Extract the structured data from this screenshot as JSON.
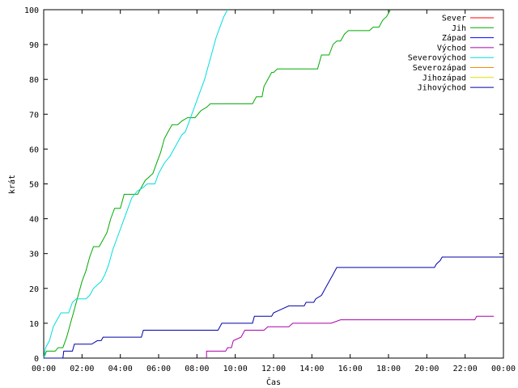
{
  "chart_data": {
    "type": "line",
    "title": "",
    "xlabel": "Čas",
    "ylabel": "krát",
    "xlim": [
      0,
      24
    ],
    "ylim": [
      0,
      100
    ],
    "grid": false,
    "legend_position": "top-right",
    "x_ticks": [
      0,
      2,
      4,
      6,
      8,
      10,
      12,
      14,
      16,
      18,
      20,
      22,
      24
    ],
    "x_tick_labels": [
      "00:00",
      "02:00",
      "04:00",
      "06:00",
      "08:00",
      "10:00",
      "12:00",
      "14:00",
      "16:00",
      "18:00",
      "20:00",
      "22:00",
      "00:00"
    ],
    "y_ticks": [
      0,
      10,
      20,
      30,
      40,
      50,
      60,
      70,
      80,
      90,
      100
    ],
    "y_tick_labels": [
      "0",
      "10",
      "20",
      "30",
      "40",
      "50",
      "60",
      "70",
      "80",
      "90",
      "100"
    ],
    "series": [
      {
        "name": "Sever",
        "color": "#ff0000",
        "points": []
      },
      {
        "name": "Jih",
        "color": "#00aa00",
        "points": [
          [
            0,
            0
          ],
          [
            0.15,
            2
          ],
          [
            0.6,
            2
          ],
          [
            0.75,
            3
          ],
          [
            1.0,
            3
          ],
          [
            1.2,
            6
          ],
          [
            1.4,
            10
          ],
          [
            1.6,
            14
          ],
          [
            1.8,
            18
          ],
          [
            2.0,
            22
          ],
          [
            2.2,
            25
          ],
          [
            2.4,
            29
          ],
          [
            2.6,
            32
          ],
          [
            2.9,
            32
          ],
          [
            3.0,
            33
          ],
          [
            3.3,
            36
          ],
          [
            3.5,
            40
          ],
          [
            3.7,
            43
          ],
          [
            4.0,
            43
          ],
          [
            4.2,
            47
          ],
          [
            4.9,
            47
          ],
          [
            5.1,
            49
          ],
          [
            5.3,
            51
          ],
          [
            5.5,
            52
          ],
          [
            5.7,
            53
          ],
          [
            5.9,
            56
          ],
          [
            6.1,
            59
          ],
          [
            6.3,
            63
          ],
          [
            6.5,
            65
          ],
          [
            6.7,
            67
          ],
          [
            7.0,
            67
          ],
          [
            7.2,
            68
          ],
          [
            7.5,
            69
          ],
          [
            7.9,
            69
          ],
          [
            8.2,
            71
          ],
          [
            8.5,
            72
          ],
          [
            8.7,
            73
          ],
          [
            10.9,
            73
          ],
          [
            11.1,
            75
          ],
          [
            11.4,
            75
          ],
          [
            11.5,
            78
          ],
          [
            11.7,
            80
          ],
          [
            11.9,
            82
          ],
          [
            12.0,
            82
          ],
          [
            12.2,
            83
          ],
          [
            14.3,
            83
          ],
          [
            14.5,
            87
          ],
          [
            14.9,
            87
          ],
          [
            15.1,
            90
          ],
          [
            15.3,
            91
          ],
          [
            15.5,
            91
          ],
          [
            15.7,
            93
          ],
          [
            15.9,
            94
          ],
          [
            17.0,
            94
          ],
          [
            17.2,
            95
          ],
          [
            17.5,
            95
          ],
          [
            17.7,
            97
          ],
          [
            17.9,
            98
          ],
          [
            18.1,
            100
          ]
        ]
      },
      {
        "name": "Západ",
        "color": "#0000ff",
        "points": []
      },
      {
        "name": "Východ",
        "color": "#aa00aa",
        "points": [
          [
            8.5,
            0
          ],
          [
            8.5,
            2
          ],
          [
            9.5,
            2
          ],
          [
            9.6,
            3
          ],
          [
            9.8,
            3
          ],
          [
            9.9,
            5
          ],
          [
            10.3,
            6
          ],
          [
            10.5,
            8
          ],
          [
            11.5,
            8
          ],
          [
            11.7,
            9
          ],
          [
            12.0,
            9
          ],
          [
            12.8,
            9
          ],
          [
            13.0,
            10
          ],
          [
            14.5,
            10
          ],
          [
            15.0,
            10
          ],
          [
            15.5,
            11
          ],
          [
            17.2,
            11
          ],
          [
            20.0,
            11
          ],
          [
            21.0,
            11
          ],
          [
            22.0,
            11
          ],
          [
            22.5,
            11
          ],
          [
            22.6,
            12
          ],
          [
            23.5,
            12
          ]
        ]
      },
      {
        "name": "Severovýchod",
        "color": "#00dddd",
        "points": [
          [
            0,
            0
          ],
          [
            0.1,
            3
          ],
          [
            0.3,
            5
          ],
          [
            0.5,
            9
          ],
          [
            0.7,
            11
          ],
          [
            0.9,
            13
          ],
          [
            1.3,
            13
          ],
          [
            1.5,
            16
          ],
          [
            1.7,
            17
          ],
          [
            2.2,
            17
          ],
          [
            2.4,
            18
          ],
          [
            2.6,
            20
          ],
          [
            2.8,
            21
          ],
          [
            3.0,
            22
          ],
          [
            3.2,
            24
          ],
          [
            3.4,
            27
          ],
          [
            3.6,
            31
          ],
          [
            3.8,
            34
          ],
          [
            4.0,
            37
          ],
          [
            4.2,
            40
          ],
          [
            4.4,
            43
          ],
          [
            4.6,
            46
          ],
          [
            4.9,
            48
          ],
          [
            5.2,
            49
          ],
          [
            5.4,
            50
          ],
          [
            5.8,
            50
          ],
          [
            6.0,
            53
          ],
          [
            6.3,
            56
          ],
          [
            6.6,
            58
          ],
          [
            6.8,
            60
          ],
          [
            7.0,
            62
          ],
          [
            7.2,
            64
          ],
          [
            7.4,
            65
          ],
          [
            7.6,
            68
          ],
          [
            7.8,
            71
          ],
          [
            8.0,
            74
          ],
          [
            8.2,
            77
          ],
          [
            8.4,
            80
          ],
          [
            8.6,
            84
          ],
          [
            8.8,
            88
          ],
          [
            9.0,
            92
          ],
          [
            9.2,
            95
          ],
          [
            9.4,
            98
          ],
          [
            9.6,
            100
          ]
        ]
      },
      {
        "name": "Severozápad",
        "color": "#ff8800",
        "points": []
      },
      {
        "name": "Jihozápad",
        "color": "#dddd00",
        "points": []
      },
      {
        "name": "Jihovýchod",
        "color": "#0000aa",
        "points": [
          [
            0,
            0
          ],
          [
            1.0,
            0
          ],
          [
            1.05,
            2
          ],
          [
            1.5,
            2
          ],
          [
            1.6,
            4
          ],
          [
            2.3,
            4
          ],
          [
            2.5,
            4
          ],
          [
            2.8,
            5
          ],
          [
            3.0,
            5
          ],
          [
            3.1,
            6
          ],
          [
            5.1,
            6
          ],
          [
            5.2,
            8
          ],
          [
            9.1,
            8
          ],
          [
            9.3,
            10
          ],
          [
            10.9,
            10
          ],
          [
            11.0,
            12
          ],
          [
            11.9,
            12
          ],
          [
            12.0,
            13
          ],
          [
            12.4,
            14
          ],
          [
            12.8,
            15
          ],
          [
            13.6,
            15
          ],
          [
            13.7,
            16
          ],
          [
            14.1,
            16
          ],
          [
            14.2,
            17
          ],
          [
            14.5,
            18
          ],
          [
            14.7,
            20
          ],
          [
            14.9,
            22
          ],
          [
            15.1,
            24
          ],
          [
            15.3,
            26
          ],
          [
            20.4,
            26
          ],
          [
            20.5,
            27
          ],
          [
            20.7,
            28
          ],
          [
            20.8,
            29
          ],
          [
            24,
            29
          ]
        ]
      }
    ]
  }
}
